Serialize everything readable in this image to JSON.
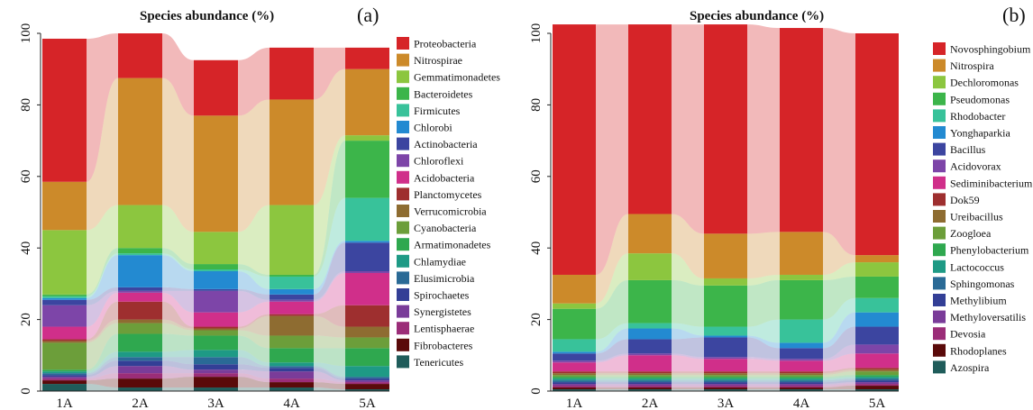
{
  "chart_data": [
    {
      "type": "area",
      "panel_label": "(a)",
      "title": "Species abundance (%)",
      "categories": [
        "1A",
        "2A",
        "3A",
        "4A",
        "5A"
      ],
      "ylim": [
        0,
        100
      ],
      "yticks": [
        0,
        20,
        40,
        60,
        80,
        100
      ],
      "legend_position": "right",
      "series": [
        {
          "name": "Tenericutes",
          "color": "#1f5c5a",
          "values": [
            2,
            1,
            1,
            1,
            0.5
          ]
        },
        {
          "name": "Fibrobacteres",
          "color": "#5a0a0a",
          "values": [
            1,
            2.5,
            3,
            1.5,
            1.5
          ]
        },
        {
          "name": "Lentisphaerae",
          "color": "#9b2d78",
          "values": [
            0.5,
            1.5,
            1,
            1,
            0.5
          ]
        },
        {
          "name": "Synergistetes",
          "color": "#7a3c99",
          "values": [
            0.5,
            2,
            1,
            2,
            0.5
          ]
        },
        {
          "name": "Spirochaetes",
          "color": "#333f96",
          "values": [
            0.5,
            1.5,
            1.5,
            1,
            0.5
          ]
        },
        {
          "name": "Elusimicrobia",
          "color": "#2a6a96",
          "values": [
            0.5,
            1,
            2,
            0.5,
            0.5
          ]
        },
        {
          "name": "Chlamydiae",
          "color": "#1e9a85",
          "values": [
            0.5,
            1.5,
            2,
            1,
            3
          ]
        },
        {
          "name": "Armatimonadetes",
          "color": "#2fa84f",
          "values": [
            0.5,
            5,
            4,
            4,
            5
          ]
        },
        {
          "name": "Cyanobacteria",
          "color": "#6c9e3a",
          "values": [
            7.5,
            3,
            1.5,
            3.5,
            3
          ]
        },
        {
          "name": "Verrucomicrobia",
          "color": "#8e6c31",
          "values": [
            0.5,
            1,
            0.5,
            5.5,
            3
          ]
        },
        {
          "name": "Planctomycetes",
          "color": "#9e2f2f",
          "values": [
            0.5,
            5,
            0.5,
            0.5,
            6
          ]
        },
        {
          "name": "Acidobacteria",
          "color": "#d02f8a",
          "values": [
            3.5,
            2.5,
            4,
            3.5,
            9
          ]
        },
        {
          "name": "Chloroflexi",
          "color": "#7d45a8",
          "values": [
            6,
            0.5,
            6,
            0.5,
            0.5
          ]
        },
        {
          "name": "Actinobacteria",
          "color": "#3c45a0",
          "values": [
            1.5,
            1,
            0.5,
            1.5,
            8
          ]
        },
        {
          "name": "Chlorobi",
          "color": "#238ad1",
          "values": [
            0.5,
            9,
            5,
            1.5,
            0.5
          ]
        },
        {
          "name": "Firmicutes",
          "color": "#38c29a",
          "values": [
            0.5,
            0.5,
            0.5,
            3.5,
            12
          ]
        },
        {
          "name": "Bacteroidetes",
          "color": "#3cb54a",
          "values": [
            0.5,
            1.5,
            1.5,
            0.5,
            16
          ]
        },
        {
          "name": "Gemmatimonadetes",
          "color": "#8cc63f",
          "values": [
            18,
            12,
            9,
            19.5,
            1.5
          ]
        },
        {
          "name": "Nitrospirae",
          "color": "#cc8a2a",
          "values": [
            13.5,
            35.5,
            32.5,
            29.5,
            18.5
          ]
        },
        {
          "name": "Proteobacteria",
          "color": "#d62428",
          "values": [
            40,
            12.5,
            15.5,
            14.5,
            6
          ]
        }
      ]
    },
    {
      "type": "area",
      "panel_label": "(b)",
      "title": "Species abundance (%)",
      "categories": [
        "1A",
        "2A",
        "3A",
        "4A",
        "5A"
      ],
      "ylim": [
        0,
        100
      ],
      "yticks": [
        0,
        20,
        40,
        60,
        80,
        100
      ],
      "legend_position": "right",
      "series": [
        {
          "name": "Azospira",
          "color": "#1f5c5a",
          "values": [
            0.5,
            0.5,
            0.5,
            0.5,
            0.5
          ]
        },
        {
          "name": "Rhodoplanes",
          "color": "#5a0a0a",
          "values": [
            0.5,
            0.5,
            0.5,
            0.5,
            1
          ]
        },
        {
          "name": "Devosia",
          "color": "#9b2d78",
          "values": [
            0.5,
            0.5,
            0.5,
            0.5,
            0.5
          ]
        },
        {
          "name": "Methyloversatilis",
          "color": "#7a3c99",
          "values": [
            0.5,
            0.5,
            0.5,
            0.5,
            0.5
          ]
        },
        {
          "name": "Methylibium",
          "color": "#333f96",
          "values": [
            0.5,
            0.5,
            0.5,
            0.5,
            0.5
          ]
        },
        {
          "name": "Sphingomonas",
          "color": "#2a6a96",
          "values": [
            0.5,
            0.5,
            0.5,
            0.5,
            0.5
          ]
        },
        {
          "name": "Lactococcus",
          "color": "#1e9a85",
          "values": [
            0.5,
            0.5,
            0.5,
            0.5,
            0.5
          ]
        },
        {
          "name": "Phenylobacterium",
          "color": "#2fa84f",
          "values": [
            0.5,
            0.5,
            0.5,
            0.5,
            0.5
          ]
        },
        {
          "name": "Zoogloea",
          "color": "#6c9e3a",
          "values": [
            0.5,
            0.5,
            0.5,
            0.5,
            1
          ]
        },
        {
          "name": "Ureibacillus",
          "color": "#8e6c31",
          "values": [
            0.5,
            0.5,
            0.5,
            0.5,
            0.5
          ]
        },
        {
          "name": "Dok59",
          "color": "#9e2f2f",
          "values": [
            0.5,
            0.5,
            0.5,
            0.5,
            0.5
          ]
        },
        {
          "name": "Sediminibacterium",
          "color": "#d02f8a",
          "values": [
            2.5,
            4.5,
            3.5,
            3,
            4
          ]
        },
        {
          "name": "Acidovorax",
          "color": "#7d45a8",
          "values": [
            0.5,
            0.5,
            0.5,
            0.5,
            2.5
          ]
        },
        {
          "name": "Bacillus",
          "color": "#3c45a0",
          "values": [
            2,
            4,
            5.5,
            3,
            5
          ]
        },
        {
          "name": "Yonghaparkia",
          "color": "#238ad1",
          "values": [
            0.5,
            3,
            0.5,
            1.5,
            4
          ]
        },
        {
          "name": "Rhodobacter",
          "color": "#38c29a",
          "values": [
            3.5,
            1.5,
            2.5,
            6.5,
            4
          ]
        },
        {
          "name": "Pseudomonas",
          "color": "#3cb54a",
          "values": [
            8.5,
            12,
            11.5,
            11,
            6
          ]
        },
        {
          "name": "Dechloromonas",
          "color": "#8cc63f",
          "values": [
            1.5,
            7.5,
            2,
            1.5,
            4
          ]
        },
        {
          "name": "Nitrospira",
          "color": "#cc8a2a",
          "values": [
            8,
            11,
            12.5,
            12,
            2
          ]
        },
        {
          "name": "Novosphingobium",
          "color": "#d62428",
          "values": [
            70,
            53,
            58.5,
            57,
            62
          ]
        }
      ]
    }
  ]
}
